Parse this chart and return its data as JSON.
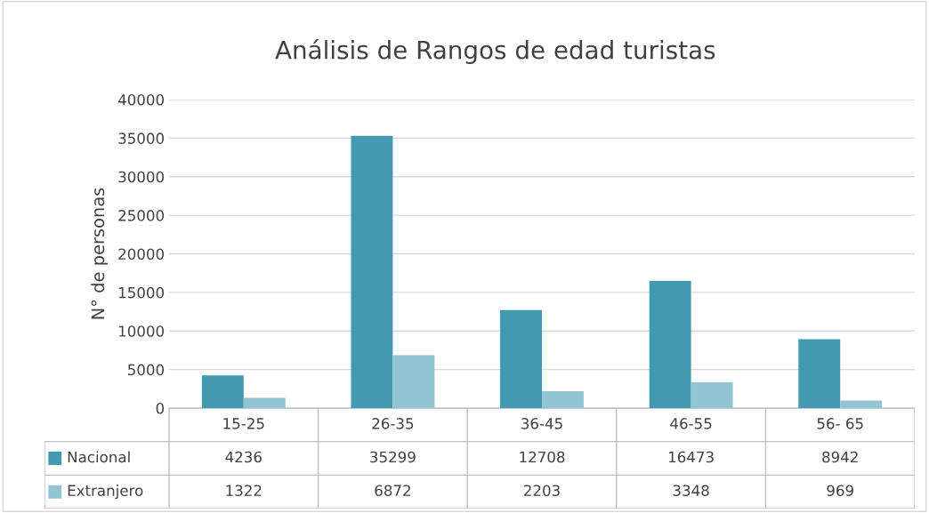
{
  "chart_data": {
    "type": "bar",
    "title": "Análisis de Rangos de edad turistas",
    "ylabel": "N° de personas",
    "categories": [
      "15-25",
      "26-35",
      "36-45",
      "46-55",
      "56- 65"
    ],
    "series": [
      {
        "name": "Nacional",
        "color": "#4399b0",
        "values": [
          4236,
          35299,
          12708,
          16473,
          8942
        ]
      },
      {
        "name": "Extranjero",
        "color": "#92c4d4",
        "values": [
          1322,
          6872,
          2203,
          3348,
          969
        ]
      }
    ],
    "ylim": [
      0,
      40000
    ],
    "yticks": [
      0,
      5000,
      10000,
      15000,
      20000,
      25000,
      30000,
      35000,
      40000
    ],
    "grid": "y",
    "legend": "bottom",
    "data_labels": true
  }
}
